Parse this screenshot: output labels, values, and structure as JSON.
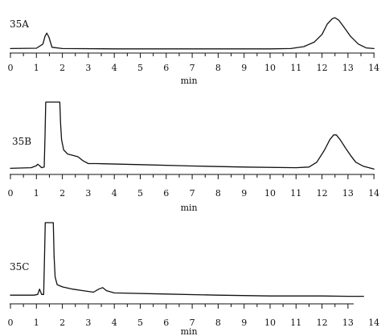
{
  "chart_data": [
    {
      "type": "line",
      "panel_label": "35A",
      "xlabel": "min",
      "ylabel": "",
      "xlim": [
        0,
        14
      ],
      "ylim": [
        0,
        1
      ],
      "grid": false,
      "x_ticks": [
        "0",
        "1",
        "2",
        "3",
        "4",
        "5",
        "6",
        "7",
        "8",
        "9",
        "10",
        "11",
        "12",
        "13",
        "14"
      ],
      "series": [
        {
          "x": [
            0,
            1.0,
            1.25,
            1.33,
            1.4,
            1.48,
            1.6,
            2.0,
            4.0,
            6.0,
            8.0,
            10.0,
            10.8,
            11.3,
            11.7,
            12.0,
            12.2,
            12.4,
            12.5,
            12.65,
            12.85,
            13.1,
            13.4,
            13.7,
            14.0
          ],
          "y": [
            0.04,
            0.05,
            0.18,
            0.42,
            0.52,
            0.4,
            0.08,
            0.04,
            0.03,
            0.03,
            0.03,
            0.03,
            0.04,
            0.1,
            0.24,
            0.48,
            0.8,
            0.97,
            1.0,
            0.92,
            0.7,
            0.42,
            0.18,
            0.06,
            0.04
          ]
        }
      ]
    },
    {
      "type": "line",
      "panel_label": "35B",
      "xlabel": "min",
      "ylabel": "",
      "xlim": [
        0,
        14
      ],
      "ylim": [
        0,
        1
      ],
      "grid": false,
      "x_ticks": [
        "0",
        "1",
        "2",
        "3",
        "4",
        "5",
        "6",
        "7",
        "8",
        "9",
        "10",
        "11",
        "12",
        "13",
        "14"
      ],
      "series": [
        {
          "x": [
            0,
            0.8,
            1.0,
            1.05,
            1.12,
            1.2,
            1.3,
            1.33,
            1.36,
            1.4,
            1.9,
            1.93,
            1.97,
            2.05,
            2.2,
            2.4,
            2.6,
            2.8,
            3.0,
            3.3,
            5.0,
            7.0,
            9.0,
            11.0,
            11.5,
            11.8,
            12.1,
            12.3,
            12.45,
            12.55,
            12.7,
            12.9,
            13.1,
            13.3,
            13.6,
            14.0
          ],
          "y": [
            0.03,
            0.04,
            0.07,
            0.09,
            0.07,
            0.04,
            0.05,
            0.5,
            1.0,
            1.0,
            1.0,
            0.7,
            0.45,
            0.3,
            0.24,
            0.22,
            0.2,
            0.14,
            0.1,
            0.1,
            0.085,
            0.065,
            0.05,
            0.04,
            0.05,
            0.12,
            0.3,
            0.45,
            0.52,
            0.52,
            0.45,
            0.33,
            0.22,
            0.12,
            0.06,
            0.02
          ]
        }
      ]
    },
    {
      "type": "line",
      "panel_label": "35C",
      "xlabel": "min",
      "ylabel": "",
      "xlim": [
        0,
        14
      ],
      "ylim": [
        0,
        1
      ],
      "grid": false,
      "x_ticks": [
        "0",
        "1",
        "2",
        "3",
        "4",
        "5",
        "6",
        "7",
        "8",
        "9",
        "10",
        "11",
        "12",
        "13",
        "14"
      ],
      "series": [
        {
          "x": [
            0,
            0.9,
            1.05,
            1.12,
            1.2,
            1.28,
            1.31,
            1.34,
            1.38,
            1.65,
            1.68,
            1.72,
            1.8,
            2.0,
            2.4,
            2.8,
            3.2,
            3.4,
            3.55,
            3.7,
            4.0,
            6.0,
            8.0,
            10.0,
            12.0,
            13.0,
            13.6
          ],
          "y": [
            0.04,
            0.04,
            0.05,
            0.12,
            0.05,
            0.05,
            0.5,
            1.0,
            1.0,
            1.0,
            0.55,
            0.28,
            0.18,
            0.15,
            0.12,
            0.1,
            0.08,
            0.12,
            0.14,
            0.1,
            0.07,
            0.055,
            0.04,
            0.03,
            0.03,
            0.025,
            0.025
          ]
        }
      ]
    }
  ]
}
